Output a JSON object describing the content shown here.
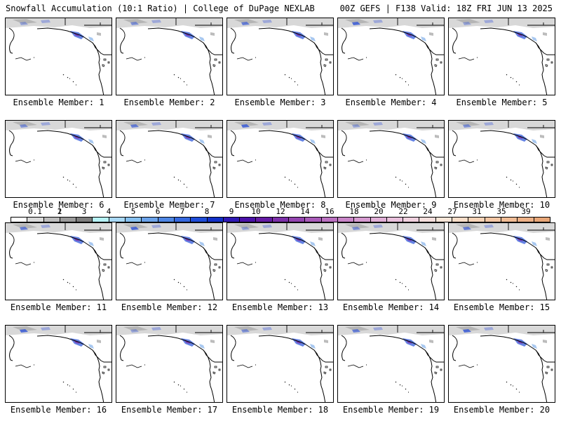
{
  "header": {
    "title_left": "Snowfall Accumulation (10:1 Ratio) | College of DuPage NEXLAB",
    "title_right": "00Z GEFS | F138 Valid: 18Z FRI JUN 13 2025"
  },
  "members": [
    {
      "label": "Ensemble Member: 1"
    },
    {
      "label": "Ensemble Member: 2"
    },
    {
      "label": "Ensemble Member: 3"
    },
    {
      "label": "Ensemble Member: 4"
    },
    {
      "label": "Ensemble Member: 5"
    },
    {
      "label": "Ensemble Member: 6"
    },
    {
      "label": "Ensemble Member: 7"
    },
    {
      "label": "Ensemble Member: 8"
    },
    {
      "label": "Ensemble Member: 9"
    },
    {
      "label": "Ensemble Member: 10"
    },
    {
      "label": "Ensemble Member: 11"
    },
    {
      "label": "Ensemble Member: 12"
    },
    {
      "label": "Ensemble Member: 13"
    },
    {
      "label": "Ensemble Member: 14"
    },
    {
      "label": "Ensemble Member: 15"
    },
    {
      "label": "Ensemble Member: 16"
    },
    {
      "label": "Ensemble Member: 17"
    },
    {
      "label": "Ensemble Member: 18"
    },
    {
      "label": "Ensemble Member: 19"
    },
    {
      "label": "Ensemble Member: 20"
    }
  ],
  "colorbar": {
    "labels": [
      "0.1",
      "1",
      "2",
      "3",
      "4",
      "5",
      "6",
      "7",
      "8",
      "9",
      "10",
      "12",
      "14",
      "16",
      "18",
      "20",
      "22",
      "24",
      "27",
      "31",
      "35",
      "39"
    ],
    "colors": [
      "#ffffff",
      "#d9d9d9",
      "#bdbdbd",
      "#9a9a9a",
      "#7d7d7d",
      "#b6f2f6",
      "#a8d8f5",
      "#86c0f0",
      "#6aa2ea",
      "#4e86e4",
      "#3568de",
      "#1e4cd8",
      "#1230c8",
      "#2e18b4",
      "#4a10a8",
      "#641aa4",
      "#7c2ea8",
      "#9444b0",
      "#a85ab8",
      "#ba70c0",
      "#c985c8",
      "#d69ad0",
      "#e0aed6",
      "#e9c0dc",
      "#f0d0de",
      "#f5dedc",
      "#f8e6d8",
      "#f8ddc8",
      "#f6d2b6",
      "#f3c6a4",
      "#f0bb94",
      "#ecb086",
      "#e8a678"
    ]
  }
}
